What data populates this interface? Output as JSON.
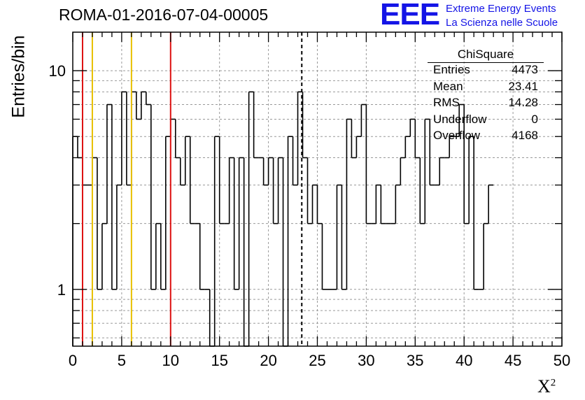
{
  "header": {
    "run_id": "ROMA-01-2016-07-04-00005",
    "logo_text": "EEE",
    "logo_line1": "Extreme Energy Events",
    "logo_line2": "La Scienza nelle Scuole"
  },
  "stats_box": {
    "title": "ChiSquare",
    "rows": [
      {
        "label": "Entries",
        "value": "4473"
      },
      {
        "label": "Mean",
        "value": "23.41"
      },
      {
        "label": "RMS",
        "value": "14.28"
      },
      {
        "label": "Underflow",
        "value": "0"
      },
      {
        "label": "Overflow",
        "value": "4168"
      }
    ]
  },
  "chart_data": {
    "type": "histogram",
    "y_scale": "log",
    "ylabel": "Entries/bin",
    "xlabel": "X",
    "xlabel_superscript": "2",
    "xlim": [
      0,
      50
    ],
    "ylim": [
      0.55,
      15
    ],
    "x_ticks": [
      "0",
      "5",
      "10",
      "15",
      "20",
      "25",
      "30",
      "35",
      "40",
      "45",
      "50"
    ],
    "y_ticks": [
      "1",
      "10"
    ],
    "grid": true,
    "bin_width": 0.5,
    "bin_values": [
      5,
      4,
      3,
      3,
      4,
      1,
      2,
      7,
      1,
      3,
      8,
      3,
      8,
      6,
      8,
      7,
      1,
      2,
      1,
      5,
      6,
      4,
      3,
      5,
      2,
      2,
      1,
      1,
      0,
      5,
      2,
      2,
      4,
      1,
      4,
      0,
      8,
      4,
      4,
      3,
      4,
      2,
      4,
      0,
      5,
      3,
      8,
      4,
      2,
      3,
      2,
      1,
      1,
      1,
      3,
      1,
      6,
      4,
      5,
      7,
      2,
      2,
      3,
      2,
      2,
      2,
      3,
      4,
      5,
      6,
      4,
      2,
      6,
      3,
      3,
      4,
      4,
      5,
      5,
      7,
      2,
      5,
      1,
      1,
      2,
      3
    ],
    "vertical_lines": [
      {
        "x": 1,
        "color": "#dd1111",
        "style": "solid"
      },
      {
        "x": 2,
        "color": "#e8c000",
        "style": "solid"
      },
      {
        "x": 6,
        "color": "#e8c000",
        "style": "solid"
      },
      {
        "x": 10,
        "color": "#dd1111",
        "style": "solid"
      },
      {
        "x": 23.41,
        "color": "#000000",
        "style": "dashed"
      }
    ]
  }
}
